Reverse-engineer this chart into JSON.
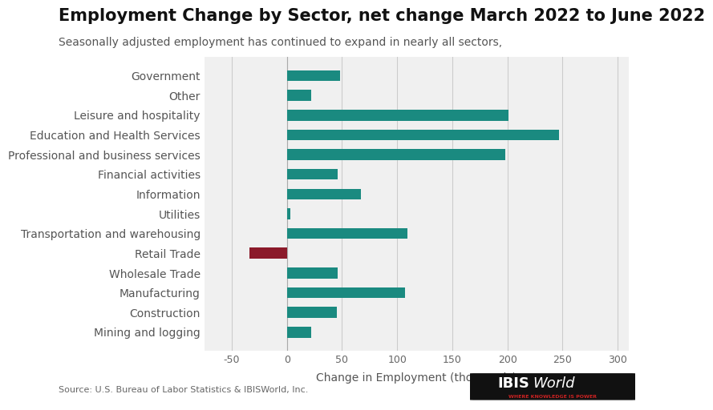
{
  "title": "Employment Change by Sector, net change March 2022 to June 2022",
  "subtitle": "Seasonally adjusted employment has continued to expand in nearly all sectors,",
  "xlabel": "Change in Employment (thousands)",
  "source": "Source: U.S. Bureau of Labor Statistics & IBISWorld, Inc.",
  "categories": [
    "Mining and logging",
    "Construction",
    "Manufacturing",
    "Wholesale Trade",
    "Retail Trade",
    "Transportation and warehousing",
    "Utilities",
    "Information",
    "Financial activities",
    "Professional and business services",
    "Education and Health Services",
    "Leisure and hospitality",
    "Other",
    "Government"
  ],
  "values": [
    22,
    45,
    107,
    46,
    -34,
    109,
    3,
    67,
    46,
    198,
    247,
    201,
    22,
    48
  ],
  "bar_colors": [
    "#1a8a80",
    "#1a8a80",
    "#1a8a80",
    "#1a8a80",
    "#8b1a2a",
    "#1a8a80",
    "#1a8a80",
    "#1a8a80",
    "#1a8a80",
    "#1a8a80",
    "#1a8a80",
    "#1a8a80",
    "#1a8a80",
    "#1a8a80"
  ],
  "xlim": [
    -75,
    310
  ],
  "xticks": [
    -50,
    0,
    50,
    100,
    150,
    200,
    250,
    300
  ],
  "background_color": "#ffffff",
  "grid_color": "#cccccc",
  "plot_bg_color": "#f0f0f0",
  "title_fontsize": 15,
  "subtitle_fontsize": 10,
  "label_fontsize": 10,
  "tick_fontsize": 9,
  "bar_height": 0.55
}
